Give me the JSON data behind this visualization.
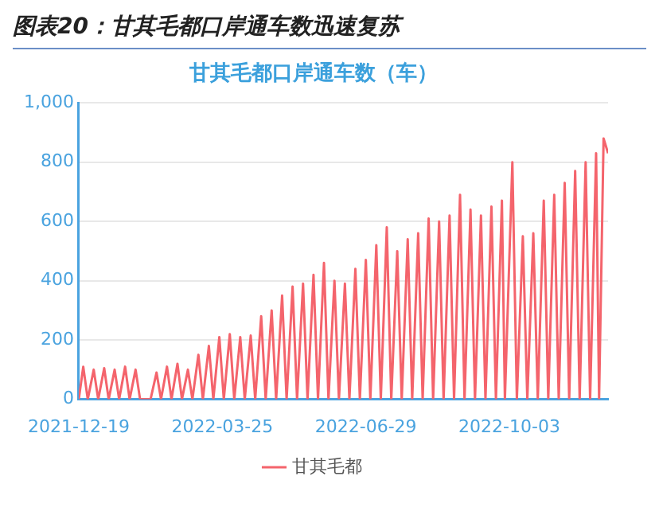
{
  "chart_data": {
    "type": "line",
    "title": "图表20：甘其毛都口岸通车数迅速复苏",
    "subtitle": "甘其毛都口岸通车数（车）",
    "x": [
      "2021-12-19",
      "2021-12-22",
      "2021-12-25",
      "2021-12-29",
      "2022-01-01",
      "2022-01-05",
      "2022-01-08",
      "2022-01-12",
      "2022-01-15",
      "2022-01-19",
      "2022-01-22",
      "2022-01-26",
      "2022-01-29",
      "2022-02-02",
      "2022-02-05",
      "2022-02-09",
      "2022-02-12",
      "2022-02-16",
      "2022-02-19",
      "2022-02-23",
      "2022-02-26",
      "2022-03-02",
      "2022-03-05",
      "2022-03-09",
      "2022-03-12",
      "2022-03-16",
      "2022-03-19",
      "2022-03-23",
      "2022-03-26",
      "2022-03-30",
      "2022-04-02",
      "2022-04-06",
      "2022-04-09",
      "2022-04-13",
      "2022-04-16",
      "2022-04-20",
      "2022-04-23",
      "2022-04-27",
      "2022-04-30",
      "2022-05-04",
      "2022-05-07",
      "2022-05-11",
      "2022-05-14",
      "2022-05-18",
      "2022-05-21",
      "2022-05-25",
      "2022-05-28",
      "2022-06-01",
      "2022-06-04",
      "2022-06-08",
      "2022-06-11",
      "2022-06-15",
      "2022-06-18",
      "2022-06-22",
      "2022-06-25",
      "2022-06-29",
      "2022-07-02",
      "2022-07-06",
      "2022-07-09",
      "2022-07-13",
      "2022-07-16",
      "2022-07-20",
      "2022-07-23",
      "2022-07-27",
      "2022-07-30",
      "2022-08-03",
      "2022-08-06",
      "2022-08-10",
      "2022-08-13",
      "2022-08-17",
      "2022-08-20",
      "2022-08-24",
      "2022-08-27",
      "2022-08-31",
      "2022-09-03",
      "2022-09-07",
      "2022-09-10",
      "2022-09-14",
      "2022-09-17",
      "2022-09-21",
      "2022-09-24",
      "2022-09-28",
      "2022-09-30",
      "2022-10-05",
      "2022-10-08",
      "2022-10-12",
      "2022-10-15",
      "2022-10-19",
      "2022-10-22",
      "2022-10-26",
      "2022-10-29",
      "2022-11-02",
      "2022-11-05",
      "2022-11-09",
      "2022-11-12",
      "2022-11-16",
      "2022-11-19",
      "2022-11-23",
      "2022-11-26",
      "2022-11-30",
      "2022-12-02",
      "2022-12-05",
      "2022-12-08"
    ],
    "series": [
      {
        "name": "甘其毛都",
        "color": "#f4646c",
        "values": [
          0,
          110,
          0,
          100,
          0,
          105,
          0,
          100,
          0,
          110,
          0,
          100,
          0,
          0,
          0,
          90,
          0,
          110,
          0,
          120,
          0,
          100,
          0,
          150,
          0,
          180,
          0,
          210,
          0,
          220,
          0,
          210,
          0,
          215,
          0,
          280,
          0,
          300,
          0,
          350,
          0,
          380,
          0,
          390,
          0,
          420,
          0,
          460,
          0,
          400,
          0,
          390,
          0,
          440,
          0,
          470,
          0,
          520,
          0,
          580,
          0,
          500,
          0,
          540,
          0,
          560,
          0,
          610,
          0,
          600,
          0,
          620,
          0,
          690,
          0,
          640,
          0,
          620,
          0,
          650,
          0,
          670,
          0,
          800,
          0,
          550,
          0,
          560,
          0,
          670,
          0,
          690,
          0,
          730,
          0,
          770,
          0,
          800,
          0,
          830,
          0,
          880,
          830
        ]
      }
    ],
    "xlim": [
      "2021-12-19",
      "2022-12-08"
    ],
    "xticks": [
      "2021-12-19",
      "2022-03-25",
      "2022-06-29",
      "2022-10-03"
    ],
    "ylim": [
      0,
      1000
    ],
    "yticks": [
      0,
      200,
      400,
      600,
      800,
      {
        "value": 1000,
        "label": "1,000"
      }
    ],
    "grid": "y",
    "legend": "bottom",
    "marker": "none",
    "line_style": "solid"
  }
}
